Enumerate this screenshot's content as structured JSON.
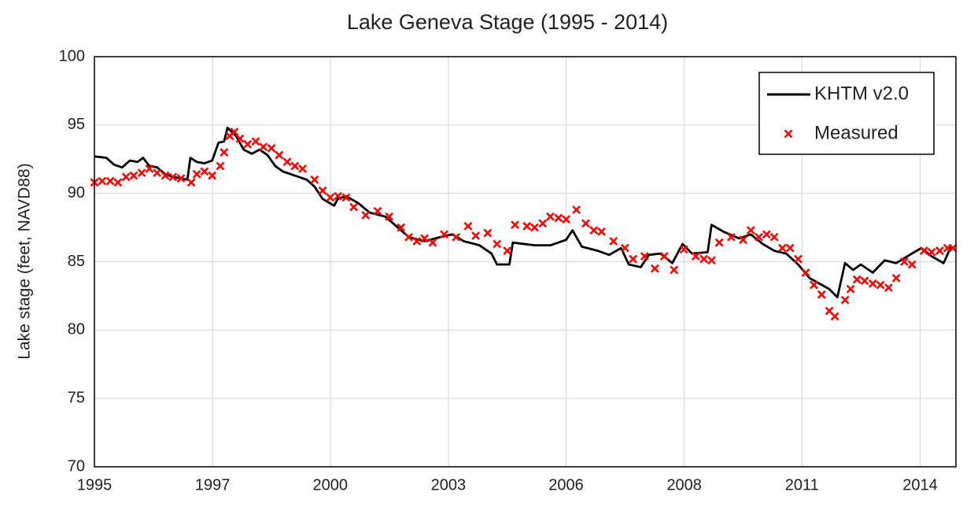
{
  "chart_data": {
    "type": "line",
    "title": "Lake Geneva Stage (1995 - 2014)",
    "y_label": "Lake stage (feet, NAVD88)",
    "xlim": [
      1995,
      2015.2
    ],
    "xticks": [
      {
        "value": 1995,
        "label": "1995"
      },
      {
        "value": 1997.77,
        "label": "1997"
      },
      {
        "value": 2000.53,
        "label": "2000"
      },
      {
        "value": 2003.3,
        "label": "2003"
      },
      {
        "value": 2006.06,
        "label": "2006"
      },
      {
        "value": 2008.83,
        "label": "2008"
      },
      {
        "value": 2011.59,
        "label": "2011"
      },
      {
        "value": 2014.36,
        "label": "2014"
      }
    ],
    "ylim": [
      70,
      100
    ],
    "yticks": [
      70,
      75,
      80,
      85,
      90,
      95,
      100
    ],
    "grid": true,
    "legend": "upper right",
    "series": [
      {
        "name": "KHTM v2.0",
        "type": "line",
        "color": "#000000",
        "x": [
          1995.0,
          1995.28,
          1995.46,
          1995.65,
          1995.83,
          1996.01,
          1996.14,
          1996.29,
          1996.47,
          1996.66,
          1996.84,
          1997.03,
          1997.18,
          1997.25,
          1997.4,
          1997.58,
          1997.76,
          1997.91,
          1998.04,
          1998.12,
          1998.32,
          1998.5,
          1998.69,
          1998.87,
          1999.06,
          1999.24,
          1999.42,
          1999.7,
          1999.98,
          2000.16,
          2000.35,
          2000.62,
          2000.71,
          2000.9,
          2001.18,
          2001.45,
          2001.82,
          2002.19,
          2002.37,
          2002.74,
          2003.11,
          2003.39,
          2003.66,
          2004.03,
          2004.31,
          2004.44,
          2004.73,
          2004.81,
          2005.32,
          2005.69,
          2006.06,
          2006.21,
          2006.43,
          2006.8,
          2007.07,
          2007.35,
          2007.53,
          2007.81,
          2008.0,
          2008.27,
          2008.55,
          2008.79,
          2009.01,
          2009.38,
          2009.47,
          2009.75,
          2010.12,
          2010.39,
          2010.67,
          2010.94,
          2011.22,
          2011.5,
          2011.77,
          2012.23,
          2012.42,
          2012.6,
          2012.79,
          2012.97,
          2013.25,
          2013.53,
          2013.8,
          2014.17,
          2014.39,
          2014.63,
          2014.91,
          2015.0,
          2015.09
        ],
        "values": [
          92.7,
          92.6,
          92.1,
          91.9,
          92.4,
          92.3,
          92.6,
          92.0,
          91.9,
          91.4,
          91.2,
          91.1,
          91.0,
          92.6,
          92.3,
          92.2,
          92.4,
          93.7,
          93.8,
          94.8,
          94.2,
          93.2,
          92.9,
          93.2,
          92.8,
          92.0,
          91.6,
          91.3,
          91.0,
          90.5,
          89.6,
          89.1,
          89.6,
          89.8,
          89.3,
          88.6,
          88.3,
          87.3,
          86.8,
          86.5,
          86.8,
          87.0,
          86.5,
          86.2,
          85.6,
          84.8,
          84.8,
          86.4,
          86.2,
          86.2,
          86.6,
          87.3,
          86.1,
          85.8,
          85.5,
          86.0,
          84.8,
          84.6,
          85.5,
          85.6,
          84.9,
          86.3,
          85.6,
          85.7,
          87.7,
          87.2,
          86.7,
          87.0,
          86.3,
          85.8,
          85.6,
          84.8,
          83.8,
          83.0,
          82.4,
          84.9,
          84.4,
          84.8,
          84.2,
          85.1,
          84.9,
          85.6,
          86.0,
          85.4,
          84.9,
          85.5,
          86.2
        ]
      },
      {
        "name": "Measured",
        "type": "scatter",
        "color": "#ff0000",
        "x": [
          1995.0,
          1995.18,
          1995.37,
          1995.55,
          1995.74,
          1995.92,
          1996.11,
          1996.29,
          1996.47,
          1996.66,
          1996.84,
          1997.03,
          1997.27,
          1997.4,
          1997.58,
          1997.76,
          1997.95,
          1998.04,
          1998.17,
          1998.28,
          1998.41,
          1998.59,
          1998.78,
          1998.96,
          1999.15,
          1999.33,
          1999.52,
          1999.7,
          1999.88,
          2000.16,
          2000.35,
          2000.53,
          2000.71,
          2000.9,
          2001.08,
          2001.36,
          2001.64,
          2001.91,
          2002.19,
          2002.37,
          2002.56,
          2002.74,
          2002.93,
          2003.2,
          2003.48,
          2003.76,
          2003.94,
          2004.22,
          2004.44,
          2004.68,
          2004.86,
          2005.14,
          2005.32,
          2005.51,
          2005.69,
          2005.88,
          2006.06,
          2006.3,
          2006.52,
          2006.71,
          2006.89,
          2007.17,
          2007.44,
          2007.63,
          2007.9,
          2008.14,
          2008.36,
          2008.59,
          2008.82,
          2009.1,
          2009.29,
          2009.47,
          2009.65,
          2009.93,
          2010.21,
          2010.39,
          2010.58,
          2010.76,
          2010.94,
          2011.13,
          2011.31,
          2011.5,
          2011.68,
          2011.87,
          2012.05,
          2012.23,
          2012.36,
          2012.6,
          2012.73,
          2012.88,
          2013.06,
          2013.25,
          2013.43,
          2013.62,
          2013.8,
          2013.99,
          2014.17,
          2014.45,
          2014.63,
          2014.82,
          2015.0,
          2015.13
        ],
        "values": [
          90.8,
          90.9,
          90.9,
          90.8,
          91.2,
          91.3,
          91.5,
          91.8,
          91.5,
          91.3,
          91.2,
          91.1,
          90.8,
          91.4,
          91.6,
          91.3,
          92.0,
          93.0,
          94.2,
          94.5,
          94.0,
          93.6,
          93.8,
          93.4,
          93.3,
          92.8,
          92.3,
          92.0,
          91.8,
          91.0,
          90.2,
          89.7,
          89.8,
          89.7,
          89.0,
          88.4,
          88.7,
          88.3,
          87.5,
          86.8,
          86.5,
          86.7,
          86.4,
          87.0,
          86.8,
          87.6,
          86.9,
          87.1,
          86.3,
          85.8,
          87.7,
          87.6,
          87.5,
          87.8,
          88.3,
          88.2,
          88.1,
          88.8,
          87.8,
          87.3,
          87.2,
          86.5,
          86.0,
          85.2,
          85.4,
          84.5,
          85.4,
          84.4,
          85.9,
          85.4,
          85.2,
          85.1,
          86.4,
          86.8,
          86.6,
          87.3,
          86.8,
          87.0,
          86.8,
          86.0,
          86.0,
          85.2,
          84.2,
          83.3,
          82.6,
          81.4,
          81.0,
          82.2,
          83.0,
          83.7,
          83.6,
          83.4,
          83.3,
          83.1,
          83.8,
          85.0,
          84.8,
          85.8,
          85.7,
          85.8,
          86.0,
          86.0
        ]
      }
    ]
  }
}
